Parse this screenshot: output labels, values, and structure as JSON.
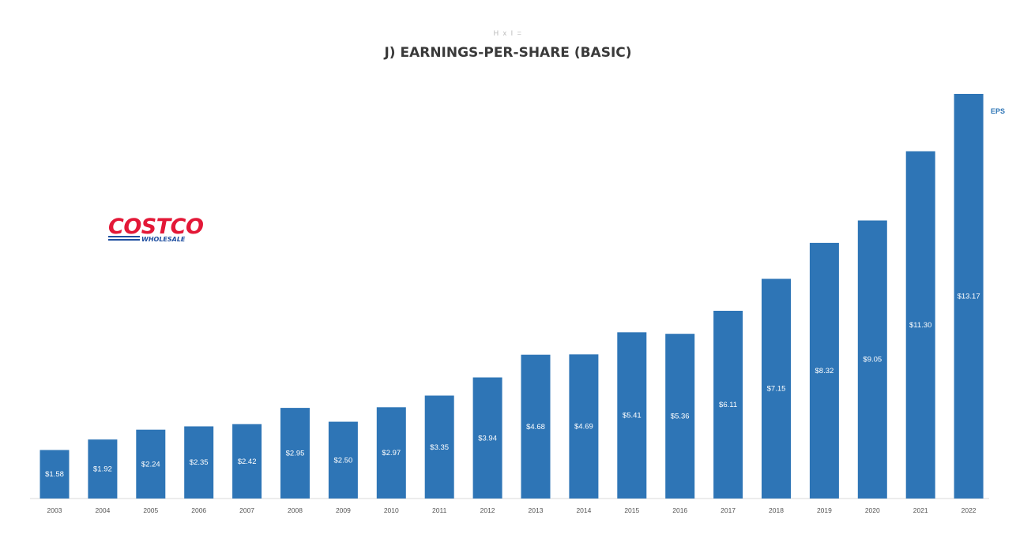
{
  "header": {
    "subtitle": "H x I =",
    "title": "J) EARNINGS-PER-SHARE (BASIC)"
  },
  "logo": {
    "brand": "COSTCO",
    "tagline": "WHOLESALE"
  },
  "colors": {
    "bar": "#2e75b6",
    "brand_red": "#e31837",
    "brand_blue": "#1f4fa0"
  },
  "chart_data": {
    "type": "bar",
    "title": "J) EARNINGS-PER-SHARE (BASIC)",
    "xlabel": "",
    "ylabel": "",
    "categories": [
      "2003",
      "2004",
      "2005",
      "2006",
      "2007",
      "2008",
      "2009",
      "2010",
      "2011",
      "2012",
      "2013",
      "2014",
      "2015",
      "2016",
      "2017",
      "2018",
      "2019",
      "2020",
      "2021",
      "2022"
    ],
    "series": [
      {
        "name": "EPS",
        "values": [
          1.58,
          1.92,
          2.24,
          2.35,
          2.42,
          2.95,
          2.5,
          2.97,
          3.35,
          3.94,
          4.68,
          4.69,
          5.41,
          5.36,
          6.11,
          7.15,
          8.32,
          9.05,
          11.3,
          13.17
        ],
        "labels": [
          "$1.58",
          "$1.92",
          "$2.24",
          "$2.35",
          "$2.42",
          "$2.95",
          "$2.50",
          "$2.97",
          "$3.35",
          "$3.94",
          "$4.68",
          "$4.69",
          "$5.41",
          "$5.36",
          "$6.11",
          "$7.15",
          "$8.32",
          "$9.05",
          "$11.30",
          "$13.17"
        ]
      }
    ],
    "ylim": [
      0,
      13.17
    ],
    "grid": false,
    "legend": "top-right"
  }
}
